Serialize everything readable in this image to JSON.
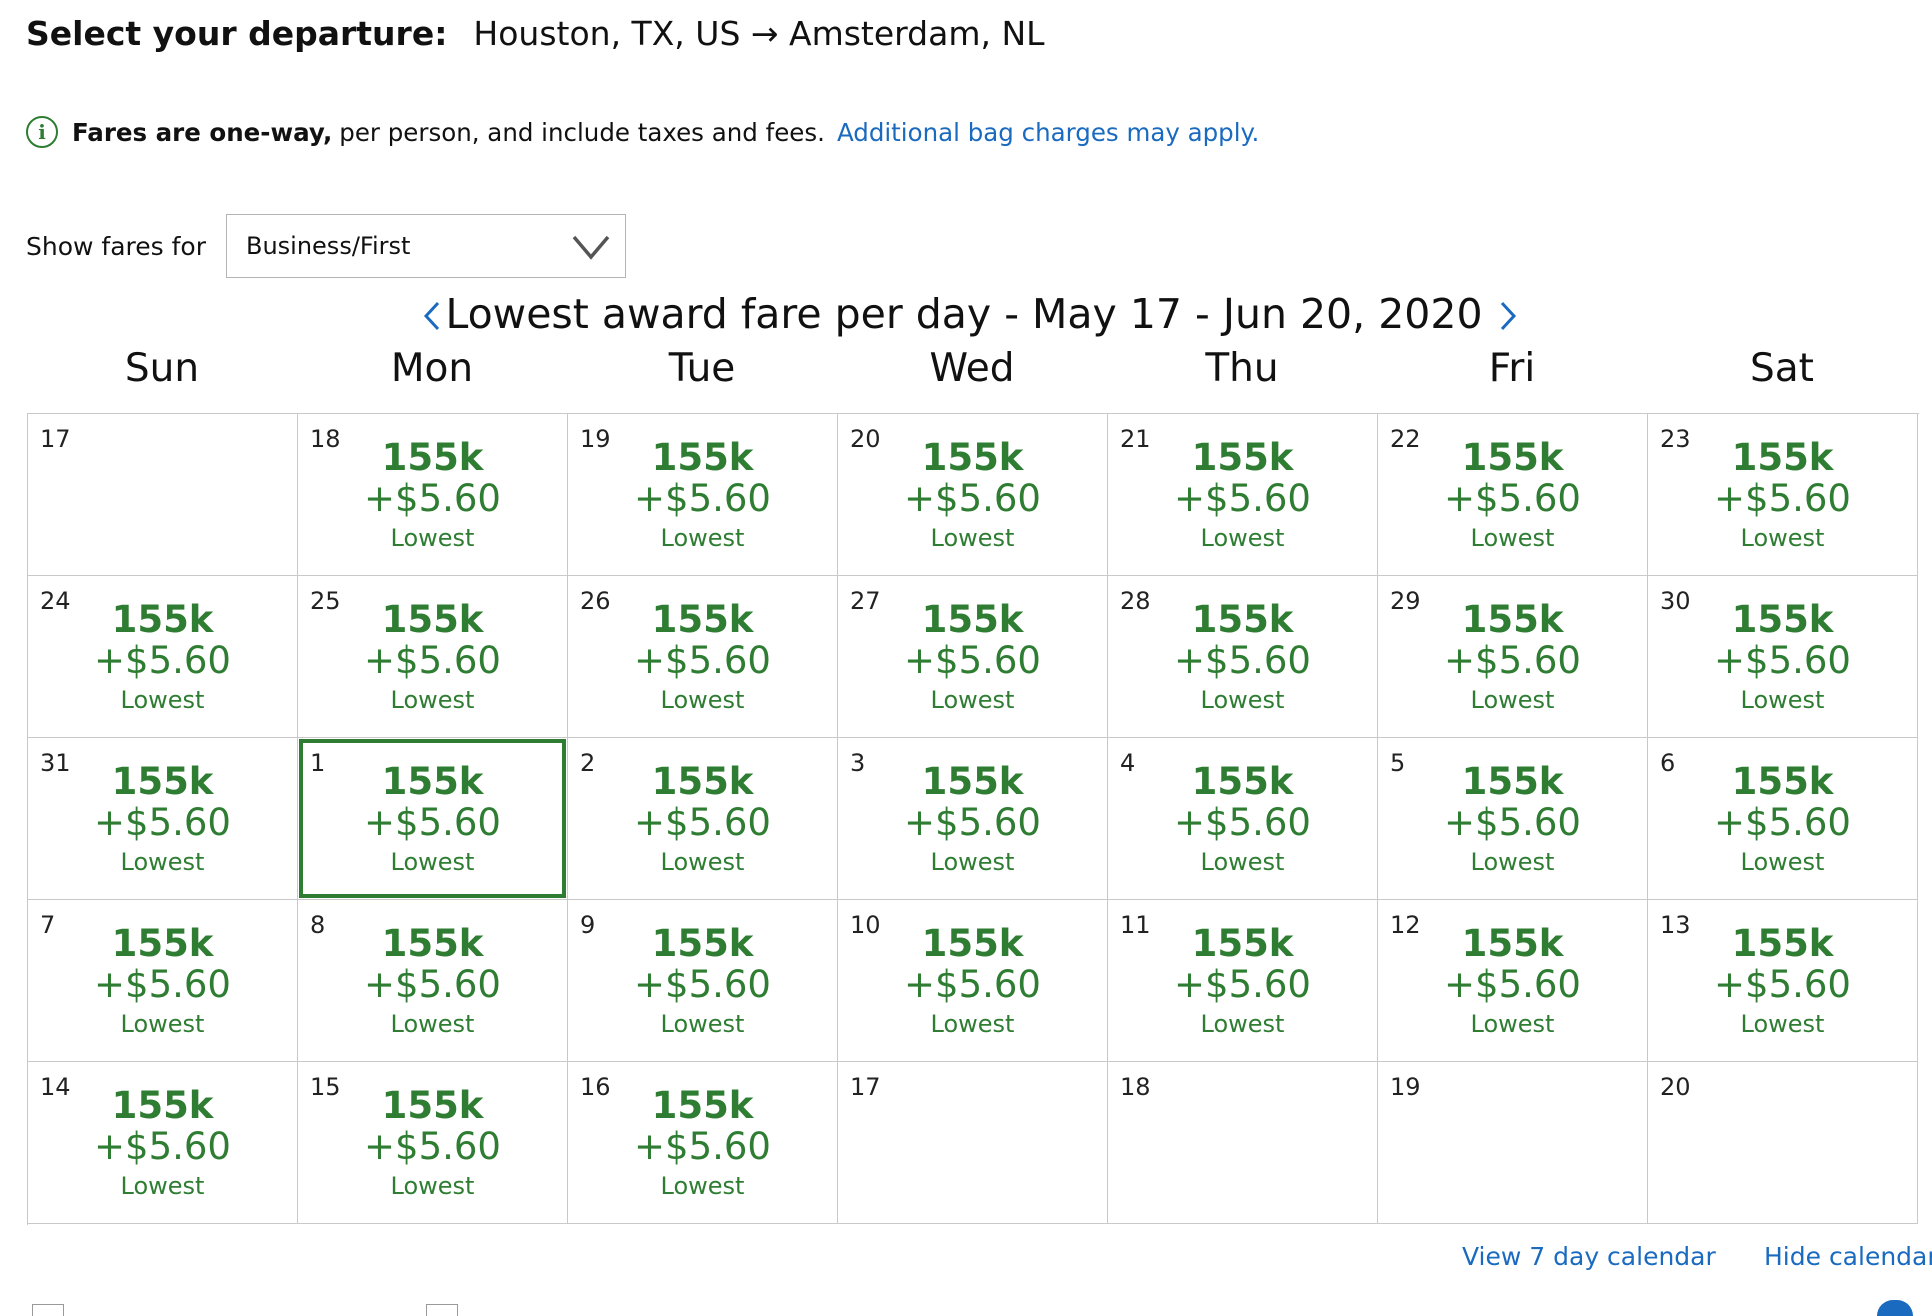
{
  "header": {
    "label": "Select your departure:",
    "route": "Houston, TX, US → Amsterdam, NL"
  },
  "info": {
    "bold": "Fares are one-way,",
    "text": "per person, and include taxes and fees.",
    "link": "Additional bag charges may apply.",
    "icon": "info-circle-icon"
  },
  "fares_filter": {
    "label": "Show fares for",
    "selected": "Business/First",
    "icon": "chevron-down-icon"
  },
  "calendar": {
    "title": "Lowest award fare per day - May 17 - Jun 20, 2020",
    "prev_icon": "chevron-left-icon",
    "next_icon": "chevron-right-icon",
    "weekdays": [
      "Sun",
      "Mon",
      "Tue",
      "Wed",
      "Thu",
      "Fri",
      "Sat"
    ],
    "selected_index": 15,
    "days": [
      {
        "day": "17"
      },
      {
        "day": "18",
        "miles": "155k",
        "taxes": "+$5.60",
        "note": "Lowest"
      },
      {
        "day": "19",
        "miles": "155k",
        "taxes": "+$5.60",
        "note": "Lowest"
      },
      {
        "day": "20",
        "miles": "155k",
        "taxes": "+$5.60",
        "note": "Lowest"
      },
      {
        "day": "21",
        "miles": "155k",
        "taxes": "+$5.60",
        "note": "Lowest"
      },
      {
        "day": "22",
        "miles": "155k",
        "taxes": "+$5.60",
        "note": "Lowest"
      },
      {
        "day": "23",
        "miles": "155k",
        "taxes": "+$5.60",
        "note": "Lowest"
      },
      {
        "day": "24",
        "miles": "155k",
        "taxes": "+$5.60",
        "note": "Lowest"
      },
      {
        "day": "25",
        "miles": "155k",
        "taxes": "+$5.60",
        "note": "Lowest"
      },
      {
        "day": "26",
        "miles": "155k",
        "taxes": "+$5.60",
        "note": "Lowest"
      },
      {
        "day": "27",
        "miles": "155k",
        "taxes": "+$5.60",
        "note": "Lowest"
      },
      {
        "day": "28",
        "miles": "155k",
        "taxes": "+$5.60",
        "note": "Lowest"
      },
      {
        "day": "29",
        "miles": "155k",
        "taxes": "+$5.60",
        "note": "Lowest"
      },
      {
        "day": "30",
        "miles": "155k",
        "taxes": "+$5.60",
        "note": "Lowest"
      },
      {
        "day": "31",
        "miles": "155k",
        "taxes": "+$5.60",
        "note": "Lowest"
      },
      {
        "day": "1",
        "miles": "155k",
        "taxes": "+$5.60",
        "note": "Lowest"
      },
      {
        "day": "2",
        "miles": "155k",
        "taxes": "+$5.60",
        "note": "Lowest"
      },
      {
        "day": "3",
        "miles": "155k",
        "taxes": "+$5.60",
        "note": "Lowest"
      },
      {
        "day": "4",
        "miles": "155k",
        "taxes": "+$5.60",
        "note": "Lowest"
      },
      {
        "day": "5",
        "miles": "155k",
        "taxes": "+$5.60",
        "note": "Lowest"
      },
      {
        "day": "6",
        "miles": "155k",
        "taxes": "+$5.60",
        "note": "Lowest"
      },
      {
        "day": "7",
        "miles": "155k",
        "taxes": "+$5.60",
        "note": "Lowest"
      },
      {
        "day": "8",
        "miles": "155k",
        "taxes": "+$5.60",
        "note": "Lowest"
      },
      {
        "day": "9",
        "miles": "155k",
        "taxes": "+$5.60",
        "note": "Lowest"
      },
      {
        "day": "10",
        "miles": "155k",
        "taxes": "+$5.60",
        "note": "Lowest"
      },
      {
        "day": "11",
        "miles": "155k",
        "taxes": "+$5.60",
        "note": "Lowest"
      },
      {
        "day": "12",
        "miles": "155k",
        "taxes": "+$5.60",
        "note": "Lowest"
      },
      {
        "day": "13",
        "miles": "155k",
        "taxes": "+$5.60",
        "note": "Lowest"
      },
      {
        "day": "14",
        "miles": "155k",
        "taxes": "+$5.60",
        "note": "Lowest"
      },
      {
        "day": "15",
        "miles": "155k",
        "taxes": "+$5.60",
        "note": "Lowest"
      },
      {
        "day": "16",
        "miles": "155k",
        "taxes": "+$5.60",
        "note": "Lowest"
      },
      {
        "day": "17"
      },
      {
        "day": "18"
      },
      {
        "day": "19"
      },
      {
        "day": "20"
      }
    ]
  },
  "footer": {
    "view7": "View 7 day calendar",
    "hide": "Hide calendar"
  },
  "colors": {
    "fare_green": "#2e7d32",
    "link_blue": "#1a6bbf",
    "grid": "#c9c9c9"
  }
}
